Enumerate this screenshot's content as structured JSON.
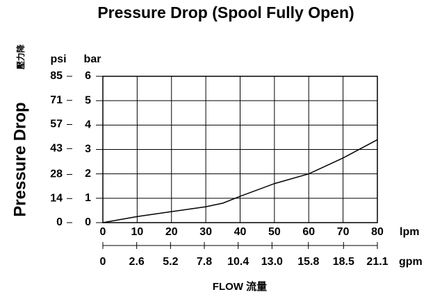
{
  "chart_data": {
    "type": "line",
    "title": "Pressure Drop (Spool Fully Open)",
    "ylabel": "Pressure Drop",
    "ylabel_cn": "壓力降",
    "y_unit": "bar",
    "y2_unit": "psi",
    "x_unit": "lpm",
    "x2_unit": "gpm",
    "xlabel": "FLOW 流量",
    "x": [
      0,
      10,
      20,
      30,
      35,
      40,
      50,
      60,
      70,
      80
    ],
    "values": [
      0,
      0.25,
      0.45,
      0.65,
      0.8,
      1.08,
      1.6,
      2.0,
      2.65,
      3.4
    ],
    "color": "#000000",
    "xlim": [
      0,
      80
    ],
    "xticks": [
      0,
      10,
      20,
      30,
      40,
      50,
      60,
      70,
      80
    ],
    "ylim": [
      0,
      6
    ],
    "yticks": [
      0,
      1,
      2,
      3,
      4,
      5,
      6
    ],
    "y2lim": [
      0,
      85
    ],
    "y2ticks": [
      0,
      14,
      28,
      43,
      57,
      71,
      85
    ],
    "x2lim": [
      0,
      21.1
    ],
    "x2ticks": [
      0,
      2.6,
      5.2,
      7.8,
      10.4,
      {
        "value": 13,
        "label": "13.0"
      },
      15.8,
      18.5,
      21.1
    ],
    "grid": true
  }
}
